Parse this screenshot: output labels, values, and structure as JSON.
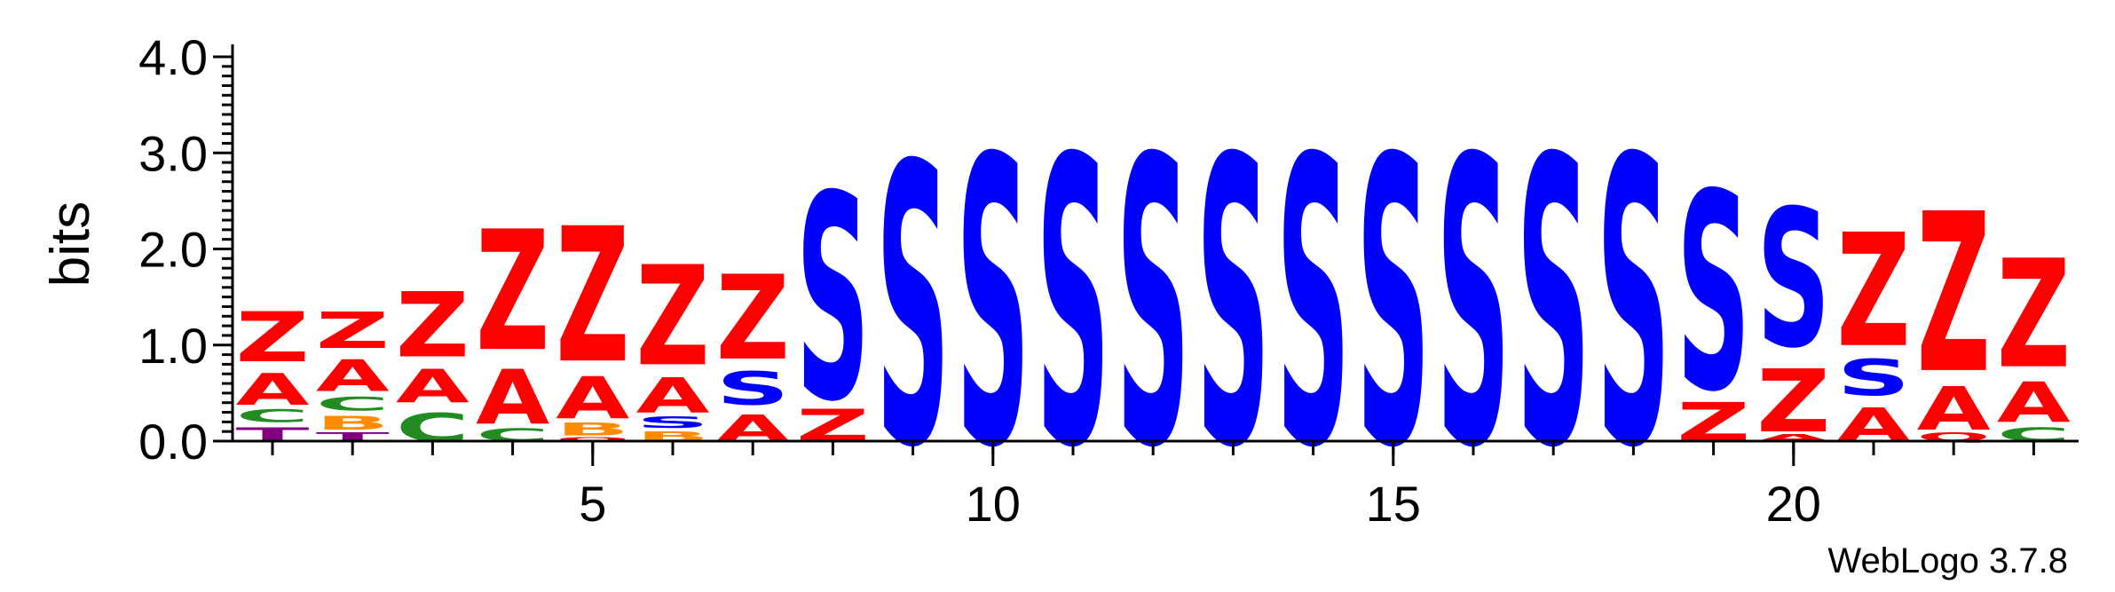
{
  "chart_data": {
    "type": "sequence_logo",
    "ylabel": "bits",
    "ylim": [
      0,
      4.32
    ],
    "y_ticks": [
      {
        "value": 0.0,
        "label": "0.0"
      },
      {
        "value": 1.0,
        "label": "1.0"
      },
      {
        "value": 2.0,
        "label": "2.0"
      },
      {
        "value": 3.0,
        "label": "3.0"
      },
      {
        "value": 4.0,
        "label": "4.0"
      }
    ],
    "x_ticks": [
      {
        "value": 5,
        "label": "5"
      },
      {
        "value": 10,
        "label": "10"
      },
      {
        "value": 15,
        "label": "15"
      },
      {
        "value": 20,
        "label": "20"
      }
    ],
    "positions": [
      {
        "pos": 1,
        "stack": [
          [
            "T",
            0.2
          ],
          [
            "C",
            0.18
          ],
          [
            "A",
            0.45
          ],
          [
            "Z",
            0.72
          ]
        ]
      },
      {
        "pos": 2,
        "stack": [
          [
            "T",
            0.12
          ],
          [
            "B",
            0.2
          ],
          [
            "C",
            0.2
          ],
          [
            "A",
            0.45
          ],
          [
            "Z",
            0.52
          ]
        ]
      },
      {
        "pos": 3,
        "stack": [
          [
            "C",
            0.4
          ],
          [
            "A",
            0.48
          ],
          [
            "Z",
            0.93
          ]
        ]
      },
      {
        "pos": 4,
        "stack": [
          [
            "C",
            0.18
          ],
          [
            "A",
            0.78
          ],
          [
            "Z",
            1.72
          ]
        ]
      },
      {
        "pos": 5,
        "stack": [
          [
            "Q",
            0.06
          ],
          [
            "B",
            0.18
          ],
          [
            "A",
            0.6
          ],
          [
            "Z",
            1.93
          ]
        ]
      },
      {
        "pos": 6,
        "stack": [
          [
            "B",
            0.14
          ],
          [
            "S",
            0.16
          ],
          [
            "A",
            0.5
          ],
          [
            "Z",
            1.43
          ]
        ]
      },
      {
        "pos": 7,
        "stack": [
          [
            "A",
            0.38
          ],
          [
            "S",
            0.48
          ],
          [
            "Z",
            1.21
          ]
        ]
      },
      {
        "pos": 8,
        "stack": [
          [
            "Z",
            0.46
          ],
          [
            "S",
            2.93
          ]
        ]
      },
      {
        "pos": 9,
        "stack": [
          [
            "S",
            4.0
          ]
        ]
      },
      {
        "pos": 10,
        "stack": [
          [
            "S",
            4.1
          ]
        ]
      },
      {
        "pos": 11,
        "stack": [
          [
            "S",
            4.1
          ]
        ]
      },
      {
        "pos": 12,
        "stack": [
          [
            "S",
            4.1
          ]
        ]
      },
      {
        "pos": 13,
        "stack": [
          [
            "S",
            4.1
          ]
        ]
      },
      {
        "pos": 14,
        "stack": [
          [
            "S",
            4.1
          ]
        ]
      },
      {
        "pos": 15,
        "stack": [
          [
            "S",
            4.1
          ]
        ]
      },
      {
        "pos": 16,
        "stack": [
          [
            "S",
            4.1
          ]
        ]
      },
      {
        "pos": 17,
        "stack": [
          [
            "S",
            4.1
          ]
        ]
      },
      {
        "pos": 18,
        "stack": [
          [
            "S",
            4.1
          ]
        ]
      },
      {
        "pos": 19,
        "stack": [
          [
            "Z",
            0.56
          ],
          [
            "S",
            2.82
          ]
        ]
      },
      {
        "pos": 20,
        "stack": [
          [
            "A",
            0.1
          ],
          [
            "Z",
            0.9
          ],
          [
            "S",
            1.97
          ]
        ]
      },
      {
        "pos": 21,
        "stack": [
          [
            "A",
            0.48
          ],
          [
            "S",
            0.52
          ],
          [
            "Z",
            1.62
          ]
        ]
      },
      {
        "pos": 22,
        "stack": [
          [
            "Q",
            0.12
          ],
          [
            "A",
            0.62
          ],
          [
            "Z",
            2.28
          ]
        ]
      },
      {
        "pos": 23,
        "stack": [
          [
            "C",
            0.2
          ],
          [
            "A",
            0.58
          ],
          [
            "Z",
            1.55
          ]
        ]
      }
    ],
    "colors": {
      "S": "#0000ff",
      "Z": "#ff0000",
      "A": "#ff0000",
      "C": "#228b22",
      "B": "#ff8c00",
      "T": "#800080",
      "Q": "#ff0000"
    }
  },
  "footer": {
    "credit": "WebLogo 3.7.8"
  }
}
